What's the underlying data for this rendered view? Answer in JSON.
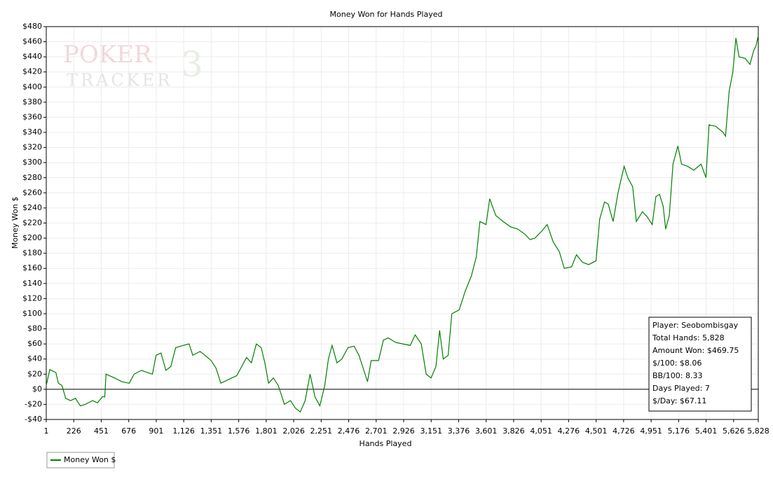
{
  "chart_data": {
    "type": "line",
    "title": "Money Won for Hands Played",
    "xlabel": "Hands Played",
    "ylabel": "Money Won $",
    "watermark": {
      "top": "POKER",
      "bottom": "TRACKER",
      "number": "3"
    },
    "grid": true,
    "legend": "bottom-left",
    "xlim": [
      1,
      5828
    ],
    "ylim": [
      -40,
      480
    ],
    "xticks": [
      1,
      226,
      451,
      676,
      901,
      {
        "value": 1126,
        "label": "1,126"
      },
      {
        "value": 1351,
        "label": "1,351"
      },
      {
        "value": 1576,
        "label": "1,576"
      },
      {
        "value": 1801,
        "label": "1,801"
      },
      {
        "value": 2026,
        "label": "2,026"
      },
      {
        "value": 2251,
        "label": "2,251"
      },
      {
        "value": 2476,
        "label": "2,476"
      },
      {
        "value": 2701,
        "label": "2,701"
      },
      {
        "value": 2926,
        "label": "2,926"
      },
      {
        "value": 3151,
        "label": "3,151"
      },
      {
        "value": 3376,
        "label": "3,376"
      },
      {
        "value": 3601,
        "label": "3,601"
      },
      {
        "value": 3826,
        "label": "3,826"
      },
      {
        "value": 4051,
        "label": "4,051"
      },
      {
        "value": 4276,
        "label": "4,276"
      },
      {
        "value": 4501,
        "label": "4,501"
      },
      {
        "value": 4726,
        "label": "4,726"
      },
      {
        "value": 4951,
        "label": "4,951"
      },
      {
        "value": 5176,
        "label": "5,176"
      },
      {
        "value": 5401,
        "label": "5,401"
      },
      {
        "value": 5626,
        "label": "5,626"
      },
      {
        "value": 5828,
        "label": "5,828"
      }
    ],
    "yticks": [
      {
        "value": -40,
        "label": "-$40"
      },
      {
        "value": -20,
        "label": "-$20"
      },
      {
        "value": 0,
        "label": "$0"
      },
      {
        "value": 20,
        "label": "$20"
      },
      {
        "value": 40,
        "label": "$40"
      },
      {
        "value": 60,
        "label": "$60"
      },
      {
        "value": 80,
        "label": "$80"
      },
      {
        "value": 100,
        "label": "$100"
      },
      {
        "value": 120,
        "label": "$120"
      },
      {
        "value": 140,
        "label": "$140"
      },
      {
        "value": 160,
        "label": "$160"
      },
      {
        "value": 180,
        "label": "$180"
      },
      {
        "value": 200,
        "label": "$200"
      },
      {
        "value": 220,
        "label": "$220"
      },
      {
        "value": 240,
        "label": "$240"
      },
      {
        "value": 260,
        "label": "$260"
      },
      {
        "value": 280,
        "label": "$280"
      },
      {
        "value": 300,
        "label": "$300"
      },
      {
        "value": 320,
        "label": "$320"
      },
      {
        "value": 340,
        "label": "$340"
      },
      {
        "value": 360,
        "label": "$360"
      },
      {
        "value": 380,
        "label": "$380"
      },
      {
        "value": 400,
        "label": "$400"
      },
      {
        "value": 420,
        "label": "$420"
      },
      {
        "value": 440,
        "label": "$440"
      },
      {
        "value": 460,
        "label": "$460"
      },
      {
        "value": 480,
        "label": "$480"
      }
    ],
    "info_box": [
      "Player: Seobombisgay",
      "Total Hands: 5,828",
      "Amount Won: $469.75",
      "$/100: $8.06",
      "BB/100: 8.33",
      "Days Played: 7",
      "$/Day: $67.11"
    ],
    "series": [
      {
        "name": "Money Won $",
        "color": "#008000",
        "x": [
          1,
          30,
          80,
          100,
          130,
          160,
          200,
          240,
          280,
          320,
          380,
          420,
          460,
          480,
          490,
          560,
          620,
          680,
          720,
          780,
          830,
          870,
          900,
          940,
          980,
          1020,
          1060,
          1120,
          1170,
          1200,
          1260,
          1300,
          1350,
          1390,
          1430,
          1480,
          1520,
          1560,
          1600,
          1640,
          1680,
          1720,
          1760,
          1790,
          1820,
          1860,
          1900,
          1950,
          2000,
          2040,
          2080,
          2120,
          2160,
          2200,
          2240,
          2280,
          2310,
          2340,
          2380,
          2420,
          2470,
          2520,
          2560,
          2600,
          2630,
          2660,
          2720,
          2760,
          2800,
          2860,
          2920,
          2980,
          3020,
          3070,
          3110,
          3150,
          3190,
          3220,
          3250,
          3290,
          3320,
          3380,
          3430,
          3480,
          3520,
          3550,
          3600,
          3630,
          3680,
          3740,
          3800,
          3860,
          3920,
          3960,
          4000,
          4060,
          4100,
          4150,
          4200,
          4240,
          4300,
          4340,
          4390,
          4440,
          4500,
          4530,
          4570,
          4600,
          4640,
          4680,
          4730,
          4760,
          4800,
          4830,
          4880,
          4920,
          4960,
          4990,
          5020,
          5050,
          5070,
          5100,
          5130,
          5170,
          5200,
          5250,
          5300,
          5360,
          5400,
          5425,
          5480,
          5540,
          5560,
          5590,
          5620,
          5645,
          5670,
          5720,
          5760,
          5790,
          5810,
          5828
        ],
        "values": [
          5,
          26,
          22,
          8,
          5,
          -12,
          -15,
          -12,
          -22,
          -20,
          -15,
          -18,
          -10,
          -10,
          20,
          15,
          10,
          8,
          20,
          25,
          22,
          20,
          45,
          48,
          25,
          30,
          55,
          58,
          60,
          45,
          50,
          45,
          38,
          28,
          8,
          12,
          15,
          18,
          30,
          42,
          35,
          60,
          55,
          35,
          8,
          15,
          5,
          -20,
          -15,
          -25,
          -30,
          -15,
          20,
          -10,
          -22,
          5,
          40,
          58,
          35,
          40,
          55,
          57,
          45,
          25,
          10,
          38,
          38,
          65,
          68,
          62,
          60,
          58,
          72,
          60,
          20,
          15,
          30,
          78,
          40,
          45,
          100,
          105,
          130,
          150,
          175,
          222,
          218,
          252,
          230,
          222,
          215,
          212,
          205,
          198,
          200,
          210,
          218,
          195,
          182,
          160,
          162,
          178,
          168,
          165,
          170,
          225,
          248,
          245,
          222,
          260,
          295,
          280,
          268,
          222,
          235,
          228,
          218,
          255,
          258,
          242,
          212,
          230,
          298,
          322,
          298,
          295,
          290,
          298,
          280,
          350,
          348,
          340,
          335,
          395,
          420,
          465,
          440,
          438,
          430,
          448,
          455,
          468
        ]
      }
    ]
  }
}
